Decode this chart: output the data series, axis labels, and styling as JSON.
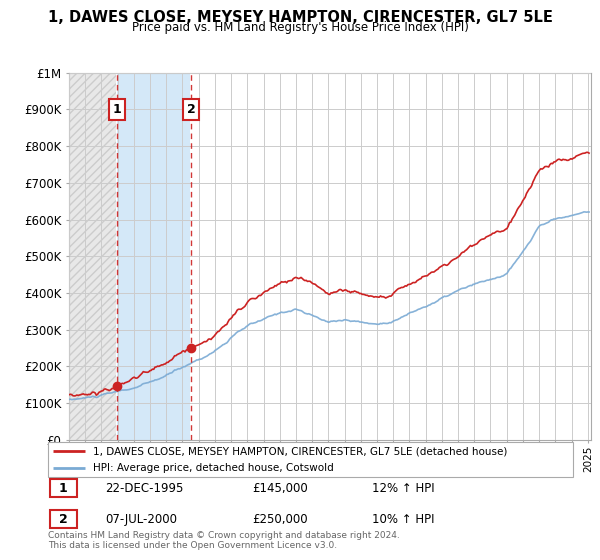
{
  "title": "1, DAWES CLOSE, MEYSEY HAMPTON, CIRENCESTER, GL7 5LE",
  "subtitle": "Price paid vs. HM Land Registry's House Price Index (HPI)",
  "sale1_date": "22-DEC-1995",
  "sale1_price": 145000,
  "sale1_year": 1995.97,
  "sale1_hpi": "12% ↑ HPI",
  "sale2_date": "07-JUL-2000",
  "sale2_price": 250000,
  "sale2_year": 2000.52,
  "sale2_hpi": "10% ↑ HPI",
  "legend_line1": "1, DAWES CLOSE, MEYSEY HAMPTON, CIRENCESTER, GL7 5LE (detached house)",
  "legend_line2": "HPI: Average price, detached house, Cotswold",
  "footer": "Contains HM Land Registry data © Crown copyright and database right 2024.\nThis data is licensed under the Open Government Licence v3.0.",
  "ylim": [
    0,
    1000000
  ],
  "sale_color": "#cc2222",
  "hpi_color": "#7aaad4",
  "hatch_fill_color": "#e8e8e8",
  "blue_fill_color": "#cfe0f0",
  "white_fill_color": "#ffffff"
}
